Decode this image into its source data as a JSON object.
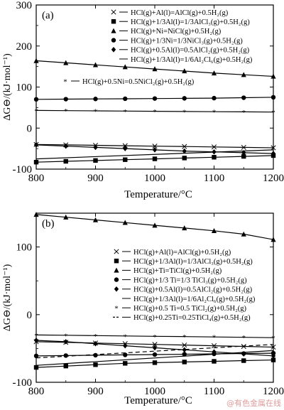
{
  "watermark": "@有色金属在线",
  "chart_data": [
    {
      "type": "line",
      "panel": "(a)",
      "xlabel": "Temperature/°C",
      "ylabel": "ΔG⊖/(kJ·mol⁻¹)",
      "xlim": [
        800,
        1200
      ],
      "ylim": [
        -100,
        300
      ],
      "xticks": [
        800,
        900,
        1000,
        1100,
        1200
      ],
      "yticks": [
        -100,
        0,
        100,
        200,
        300
      ],
      "legend_position": "top-right",
      "series": [
        {
          "name": "HCl(g)+Al(l)=AlCl(g)+0.5H₂(g)",
          "marker": "x",
          "x": [
            800,
            850,
            900,
            950,
            1000,
            1050,
            1100,
            1150,
            1200
          ],
          "y": [
            -40,
            -41,
            -42,
            -43,
            -44,
            -45,
            -46,
            -47,
            -48
          ]
        },
        {
          "name": "HCl(g)+1/3Al(l)=1/3AlCl₃(g)+0.5H₂(g)",
          "marker": "square",
          "x": [
            800,
            850,
            900,
            950,
            1000,
            1050,
            1100,
            1150,
            1200
          ],
          "y": [
            -83,
            -81,
            -79,
            -77,
            -75,
            -73,
            -71,
            -69,
            -67
          ]
        },
        {
          "name": "HCl(g)+Ni=NiCl(g)+0.5H₂(g)",
          "marker": "triangle",
          "x": [
            800,
            850,
            900,
            950,
            1000,
            1050,
            1100,
            1150,
            1200
          ],
          "y": [
            164,
            159,
            154,
            149,
            144,
            139,
            134,
            130,
            126
          ]
        },
        {
          "name": "HCl(g)+1/3Ni=1/3NiCl₃(g)+0.5H₂(g)",
          "marker": "circle",
          "x": [
            800,
            850,
            900,
            950,
            1000,
            1050,
            1100,
            1150,
            1200
          ],
          "y": [
            70,
            70.5,
            71,
            71.5,
            72,
            72.5,
            73,
            74,
            75
          ]
        },
        {
          "name": "HCl(g)+0.5Al(l)=0.5AlCl₂(g)+0.5H₂(g)",
          "marker": "diamond",
          "x": [
            800,
            850,
            900,
            950,
            1000,
            1050,
            1100,
            1150,
            1200
          ],
          "y": [
            -41,
            -44,
            -47,
            -50,
            -53,
            -56,
            -58,
            -60,
            -62
          ]
        },
        {
          "name": "HCl(g)+1/3Al(l)=1/6Al₂Cl₆(g)+0.5H₂(g)",
          "marker": "none",
          "x": [
            800,
            1200
          ],
          "y": [
            -75,
            -53
          ]
        },
        {
          "name": "HCl(g)+0.5Ni=0.5NiCl₂(g)+0.5H₂(g)",
          "marker": "asterisk",
          "x": [
            800,
            850,
            900,
            950,
            1000,
            1050,
            1100,
            1150,
            1200
          ],
          "y": [
            43,
            42.5,
            42,
            41.5,
            41,
            40.5,
            40,
            39.5,
            39
          ]
        }
      ]
    },
    {
      "type": "line",
      "panel": "(b)",
      "xlabel": "Temperature/°C",
      "ylabel": "ΔG⊖/(kJ·mol⁻¹)",
      "xlim": [
        800,
        1200
      ],
      "ylim": [
        -100,
        150
      ],
      "xticks": [
        800,
        900,
        1000,
        1100,
        1200
      ],
      "yticks": [
        -100,
        0,
        100
      ],
      "legend_position": "center-right",
      "series": [
        {
          "name": "HCl(g)+Al(l)=AlCl(g)+0.5H₂(g)",
          "marker": "x",
          "x": [
            800,
            850,
            900,
            950,
            1000,
            1050,
            1100,
            1150,
            1200
          ],
          "y": [
            -40,
            -41,
            -42,
            -43,
            -44,
            -45,
            -46,
            -47,
            -48
          ]
        },
        {
          "name": "HCl(g)+1/3Al(l)=1/3AlCl₃(g)+0.5H₂(g)",
          "marker": "square",
          "x": [
            800,
            850,
            900,
            950,
            1000,
            1050,
            1100,
            1150,
            1200
          ],
          "y": [
            -78,
            -76,
            -74,
            -72,
            -71,
            -70,
            -69,
            -68,
            -67
          ]
        },
        {
          "name": "HCl(g)+Ti=TiCl(g)+0.5H₂(g)",
          "marker": "triangle",
          "x": [
            800,
            850,
            900,
            950,
            1000,
            1050,
            1100,
            1150,
            1200
          ],
          "y": [
            148,
            144,
            140,
            136,
            132,
            128,
            124,
            119,
            111
          ]
        },
        {
          "name": "HCl(g)+1/3 Ti=1/3 TiCl₃(g)+0.5H₂(g)",
          "marker": "circle",
          "x": [
            800,
            850,
            900,
            950,
            1000,
            1050,
            1100,
            1150,
            1200
          ],
          "y": [
            -61,
            -60.5,
            -60,
            -59.5,
            -59,
            -58.5,
            -58,
            -57.5,
            -57
          ]
        },
        {
          "name": "HCl(g)+0.5Al(l)=0.5AlCl₂(g)+0.5H₂(g)",
          "marker": "diamond",
          "x": [
            800,
            850,
            900,
            950,
            1000,
            1050,
            1100,
            1150,
            1200
          ],
          "y": [
            -38,
            -40,
            -43,
            -46,
            -49,
            -52,
            -55,
            -58,
            -61
          ]
        },
        {
          "name": "HCl(g)+1/3Al(l)=1/6Al₂Cl₆(g)+0.5H₂(g)",
          "marker": "none",
          "x": [
            800,
            1200
          ],
          "y": [
            -75,
            -53
          ]
        },
        {
          "name": "HCl(g)+0.5 Ti=0.5 TiCl₂(g)+0.5H₂(g)",
          "marker": "asterisk",
          "x": [
            800,
            850,
            900,
            950,
            1000,
            1050,
            1100,
            1150,
            1200
          ],
          "y": [
            -30,
            -30.5,
            -31,
            -31.5,
            -32,
            -32.5,
            -33,
            -33.5,
            -34
          ]
        },
        {
          "name": "HCl(g)+0.25Ti=0.25TiCl₄(g)+0.5H₂(g)",
          "marker": "dashed",
          "x": [
            800,
            1200
          ],
          "y": [
            -64,
            -44
          ]
        }
      ]
    }
  ]
}
